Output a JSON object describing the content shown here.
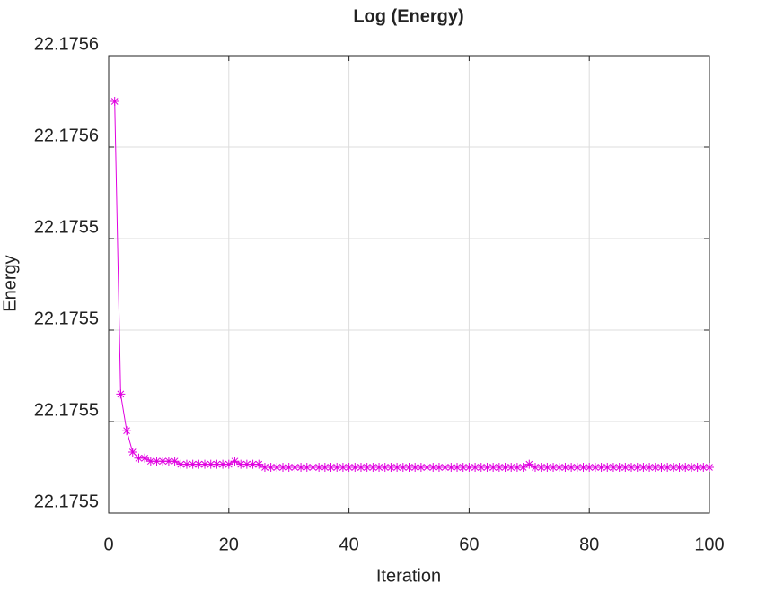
{
  "chart_data": {
    "type": "line",
    "title": "Log (Energy)",
    "xlabel": "Iteration",
    "ylabel": "Energy",
    "x": [
      1,
      2,
      3,
      4,
      5,
      6,
      7,
      8,
      9,
      10,
      11,
      12,
      13,
      14,
      15,
      16,
      17,
      18,
      19,
      20,
      21,
      22,
      23,
      24,
      25,
      26,
      27,
      28,
      29,
      30,
      31,
      32,
      33,
      34,
      35,
      36,
      37,
      38,
      39,
      40,
      41,
      42,
      43,
      44,
      45,
      46,
      47,
      48,
      49,
      50,
      51,
      52,
      53,
      54,
      55,
      56,
      57,
      58,
      59,
      60,
      61,
      62,
      63,
      64,
      65,
      66,
      67,
      68,
      69,
      70,
      71,
      72,
      73,
      74,
      75,
      76,
      77,
      78,
      79,
      80,
      81,
      82,
      83,
      84,
      85,
      86,
      87,
      88,
      89,
      90,
      91,
      92,
      93,
      94,
      95,
      96,
      97,
      98,
      99,
      100
    ],
    "values": [
      22.175585,
      22.175489,
      22.175477,
      22.17547,
      22.175468,
      22.175468,
      22.175467,
      22.175467,
      22.175467,
      22.175467,
      22.175467,
      22.175466,
      22.175466,
      22.175466,
      22.175466,
      22.175466,
      22.175466,
      22.175466,
      22.175466,
      22.175466,
      22.175467,
      22.175466,
      22.175466,
      22.175466,
      22.175466,
      22.175465,
      22.175465,
      22.175465,
      22.175465,
      22.175465,
      22.175465,
      22.175465,
      22.175465,
      22.175465,
      22.175465,
      22.175465,
      22.175465,
      22.175465,
      22.175465,
      22.175465,
      22.175465,
      22.175465,
      22.175465,
      22.175465,
      22.175465,
      22.175465,
      22.175465,
      22.175465,
      22.175465,
      22.175465,
      22.175465,
      22.175465,
      22.175465,
      22.175465,
      22.175465,
      22.175465,
      22.175465,
      22.175465,
      22.175465,
      22.175465,
      22.175465,
      22.175465,
      22.175465,
      22.175465,
      22.175465,
      22.175465,
      22.175465,
      22.175465,
      22.175465,
      22.175466,
      22.175465,
      22.175465,
      22.175465,
      22.175465,
      22.175465,
      22.175465,
      22.175465,
      22.175465,
      22.175465,
      22.175465,
      22.175465,
      22.175465,
      22.175465,
      22.175465,
      22.175465,
      22.175465,
      22.175465,
      22.175465,
      22.175465,
      22.175465,
      22.175465,
      22.175465,
      22.175465,
      22.175465,
      22.175465,
      22.175465,
      22.175465,
      22.175465,
      22.175465,
      22.175465
    ],
    "color": "#e000e0",
    "marker": "asterisk",
    "xlim": [
      0,
      100
    ],
    "xticks": [
      0,
      20,
      40,
      60,
      80,
      100
    ],
    "ylim": [
      22.17545,
      22.1756
    ],
    "yticks": [
      {
        "value": 22.17545,
        "label": "22.1755"
      },
      {
        "value": 22.17548,
        "label": "22.1755"
      },
      {
        "value": 22.17551,
        "label": "22.1755"
      },
      {
        "value": 22.17554,
        "label": "22.1755"
      },
      {
        "value": 22.17557,
        "label": "22.1756"
      },
      {
        "value": 22.1756,
        "label": "22.1756"
      }
    ],
    "grid": true
  }
}
